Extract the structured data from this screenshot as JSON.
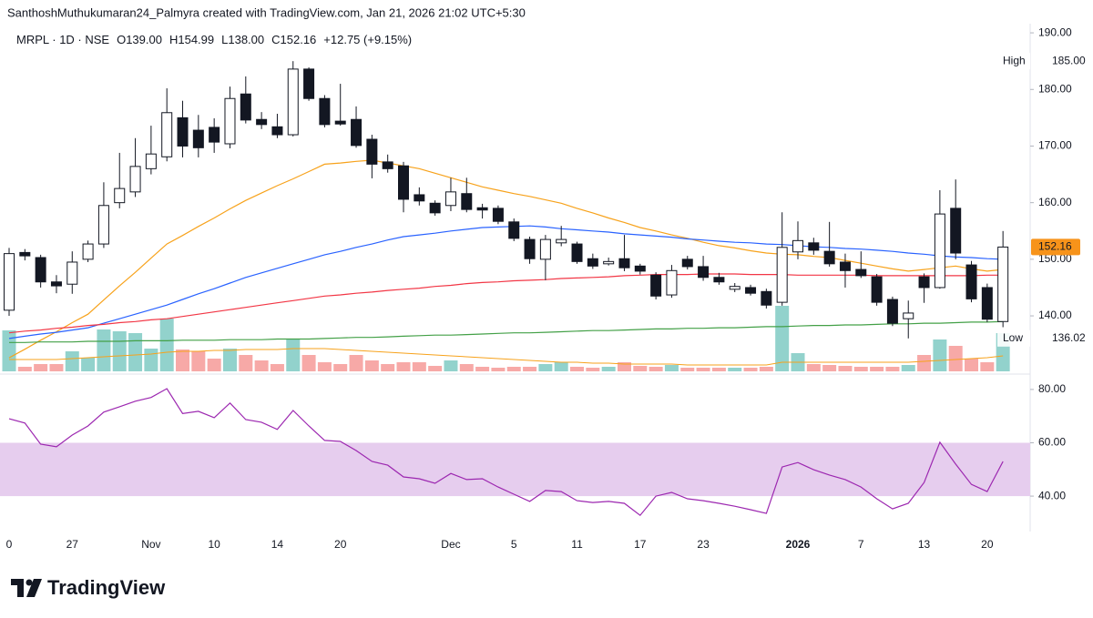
{
  "header": {
    "attribution": "SanthoshMuthukumaran24_Palmyra created with TradingView.com, Jan 21, 2026 21:02 UTC+5:30"
  },
  "chart_data": {
    "type": "candlestick",
    "symbol": "MRPL · 1D · NSE",
    "ohlc_labels": [
      "O139.00",
      "H154.99",
      "L138.00",
      "C152.16"
    ],
    "change": "+12.75 (+9.15%)",
    "categories": [
      "0",
      null,
      null,
      null,
      "27",
      null,
      null,
      null,
      null,
      "Nov",
      null,
      null,
      null,
      "10",
      null,
      null,
      null,
      "14",
      null,
      null,
      null,
      "20",
      null,
      null,
      null,
      null,
      null,
      null,
      "Dec",
      null,
      null,
      null,
      "5",
      null,
      null,
      null,
      "11",
      null,
      null,
      null,
      "17",
      null,
      null,
      null,
      "23",
      null,
      null,
      null,
      null,
      null,
      "2026",
      null,
      null,
      null,
      "7",
      null,
      null,
      null,
      "13",
      null,
      null,
      null,
      "20",
      null
    ],
    "open": [
      141,
      151.2,
      150.3,
      146,
      145.6,
      150,
      152.7,
      160,
      161.9,
      166,
      168.1,
      175,
      172.8,
      173.3,
      170.4,
      179.2,
      174.7,
      173.4,
      172,
      183.6,
      178.4,
      174.4,
      174.7,
      171.2,
      167.2,
      166.5,
      161.4,
      159.9,
      159.5,
      161.6,
      159.1,
      159,
      156.6,
      153.5,
      150,
      152.9,
      152.7,
      150.1,
      149.2,
      150.1,
      148.8,
      147.2,
      143.7,
      150,
      148.7,
      146.8,
      144.7,
      145,
      144.3,
      142.4,
      151.3,
      152.9,
      151.4,
      149.5,
      148.2,
      146.9,
      142.9,
      139.5,
      146.9,
      145,
      159,
      149,
      145,
      139
    ],
    "high": [
      152,
      151.8,
      150.8,
      147.2,
      151.4,
      153.3,
      163.6,
      168.8,
      171.4,
      173.6,
      180.2,
      178,
      175.5,
      174.9,
      180.5,
      182.3,
      176,
      175.7,
      185,
      183.9,
      179,
      181,
      177,
      172,
      168.5,
      167.2,
      162.7,
      160.4,
      164.4,
      164.4,
      159.8,
      159.5,
      157.2,
      154,
      154.3,
      155.9,
      153.1,
      151,
      150.3,
      154.3,
      149.2,
      147.7,
      149,
      150.6,
      150.6,
      147.6,
      145.8,
      145.5,
      144.8,
      158.3,
      156.7,
      153.8,
      156.6,
      151,
      151.4,
      147.4,
      143.4,
      142.7,
      147.5,
      162.2,
      164.1,
      149.7,
      145.7,
      154.99
    ],
    "low": [
      140,
      149.8,
      145,
      144,
      143.9,
      149.5,
      152,
      159,
      161,
      165,
      167.3,
      168,
      168,
      168.8,
      169.6,
      174,
      173,
      171.4,
      171.7,
      178,
      173.3,
      173.6,
      169.7,
      164.3,
      165.3,
      158.3,
      159.5,
      157.7,
      158.5,
      158.3,
      157.2,
      156.2,
      153.2,
      149.2,
      146.3,
      152.3,
      149.2,
      148.3,
      148.9,
      147.9,
      147.3,
      142.9,
      143.2,
      148.2,
      146.2,
      145.5,
      144.2,
      143.6,
      141.3,
      141.8,
      150,
      150.8,
      148.7,
      145,
      146.7,
      141.8,
      138.2,
      136.02,
      142.3,
      144.8,
      150,
      142.4,
      138.9,
      138
    ],
    "close": [
      151,
      150.6,
      146,
      145.3,
      149.5,
      152.7,
      159.5,
      162.5,
      166.4,
      168.6,
      175.9,
      170,
      169.7,
      170.7,
      178.4,
      174.6,
      173.8,
      172,
      183.6,
      178.4,
      173.8,
      173.9,
      170.1,
      166.8,
      166,
      160.6,
      160.3,
      158.2,
      161.9,
      158.8,
      158.7,
      156.7,
      153.7,
      150.1,
      153.5,
      153.5,
      149.6,
      148.8,
      149.6,
      148.5,
      147.9,
      143.5,
      148,
      148.7,
      146.8,
      146,
      145.2,
      144,
      141.9,
      152.1,
      153.3,
      151.6,
      149.2,
      148,
      147.1,
      142.4,
      138.7,
      140.5,
      145,
      158,
      151.1,
      143,
      139.41,
      152.16
    ],
    "up_color": "#ffffff",
    "down_color": "#131722",
    "up_volume_color": "#92d2cc",
    "down_volume_color": "#f7a9a7",
    "volume": [
      45,
      5,
      8,
      8,
      22,
      15,
      46,
      44,
      42,
      25,
      58,
      24,
      22,
      14,
      25,
      18,
      12,
      8,
      36,
      18,
      10,
      8,
      18,
      12,
      8,
      10,
      10,
      6,
      12,
      8,
      5,
      4,
      5,
      5,
      8,
      10,
      5,
      4,
      5,
      10,
      6,
      5,
      7,
      4,
      4,
      4,
      4,
      4,
      5,
      72,
      20,
      8,
      7,
      6,
      5,
      5,
      5,
      7,
      18,
      35,
      28,
      14,
      10,
      42
    ],
    "volume_ma": {
      "color": "#f7a21b",
      "values": [
        13,
        13,
        13,
        13,
        14,
        15,
        16,
        17,
        18,
        19,
        21,
        22,
        22,
        23,
        23,
        24,
        24,
        24,
        25,
        25,
        25,
        24,
        23,
        22,
        21,
        20,
        19,
        18,
        17,
        16,
        15,
        14,
        13,
        12,
        11,
        10,
        10,
        9,
        9,
        8,
        8,
        8,
        8,
        7,
        7,
        7,
        7,
        7,
        7,
        10,
        10,
        10,
        10,
        10,
        10,
        10,
        10,
        10,
        11,
        12,
        13,
        14,
        15,
        17
      ]
    },
    "vlim": [
      0,
      90
    ],
    "overlays": [
      {
        "color": "#f7a21b",
        "values": [
          132.6,
          134.1,
          135.7,
          137.2,
          138.8,
          140.3,
          142.8,
          145.3,
          147.7,
          150.2,
          152.7,
          154.2,
          155.8,
          157.3,
          158.9,
          160.4,
          161.7,
          163,
          164.2,
          165.5,
          166.8,
          167,
          167.3,
          167.5,
          167,
          166.5,
          166,
          165.2,
          164.4,
          163.6,
          162.8,
          162.2,
          161.6,
          161.1,
          160.5,
          159.9,
          159,
          158.2,
          157.3,
          156.5,
          155.6,
          155,
          154.3,
          153.7,
          153,
          152.4,
          152,
          151.5,
          151.1,
          150.9,
          150.8,
          150.5,
          150.3,
          149.8,
          149.3,
          148.8,
          148.3,
          147.9,
          148.2,
          148.5,
          148.8,
          148.3,
          147.9,
          148.2
        ]
      },
      {
        "color": "#2962ff",
        "values": [
          136,
          136.4,
          136.8,
          137.1,
          137.5,
          137.9,
          138.7,
          139.5,
          140.3,
          141.1,
          141.9,
          142.9,
          143.9,
          144.8,
          145.8,
          146.8,
          147.6,
          148.4,
          149.2,
          150,
          150.8,
          151.4,
          152.1,
          152.7,
          153.4,
          154,
          154.3,
          154.6,
          155,
          155.3,
          155.6,
          155.7,
          155.8,
          155.9,
          155.7,
          155.4,
          155.2,
          155,
          154.8,
          154.5,
          154.3,
          154.1,
          153.9,
          153.6,
          153.4,
          153.2,
          153,
          152.9,
          152.7,
          152.6,
          152.4,
          152.2,
          152.1,
          151.9,
          151.8,
          151.6,
          151.4,
          151.1,
          150.9,
          150.6,
          150.4,
          150.3,
          150.1,
          150
        ]
      },
      {
        "color": "#f23645",
        "values": [
          137,
          137.3,
          137.5,
          137.8,
          138,
          138.3,
          138.5,
          138.8,
          139,
          139.3,
          139.5,
          139.9,
          140.3,
          140.7,
          141.1,
          141.5,
          141.9,
          142.3,
          142.7,
          143.1,
          143.5,
          143.7,
          144,
          144.2,
          144.5,
          144.7,
          144.9,
          145.2,
          145.4,
          145.7,
          145.9,
          146,
          146.2,
          146.3,
          146.4,
          146.6,
          146.7,
          146.8,
          146.9,
          147.1,
          147.2,
          147.3,
          147.3,
          147.3,
          147.4,
          147.4,
          147.4,
          147.3,
          147.3,
          147.3,
          147.2,
          147.2,
          147.2,
          147.2,
          147.2,
          147.1,
          147.1,
          147.1,
          147.1,
          147.1,
          147.1,
          147.1,
          147.2,
          147.2
        ]
      },
      {
        "color": "#43a047",
        "values": [
          135.3,
          135.3,
          135.4,
          135.4,
          135.4,
          135.5,
          135.5,
          135.5,
          135.6,
          135.6,
          135.6,
          135.7,
          135.7,
          135.7,
          135.8,
          135.8,
          135.8,
          135.9,
          135.9,
          135.9,
          136,
          136.1,
          136.2,
          136.2,
          136.3,
          136.4,
          136.5,
          136.6,
          136.6,
          136.7,
          136.8,
          136.9,
          137,
          137,
          137.1,
          137.2,
          137.3,
          137.4,
          137.4,
          137.5,
          137.6,
          137.7,
          137.7,
          137.8,
          137.8,
          137.9,
          137.9,
          138,
          138.1,
          138.1,
          138.2,
          138.3,
          138.3,
          138.4,
          138.4,
          138.5,
          138.6,
          138.6,
          138.7,
          138.7,
          138.8,
          138.9,
          138.9,
          139
        ]
      }
    ],
    "ylim": [
      130.2,
      191.3
    ],
    "yticks": [
      {
        "value": 190,
        "label": "190.00"
      },
      {
        "value": 180,
        "label": "180.00"
      },
      {
        "value": 170,
        "label": "170.00"
      },
      {
        "value": 160,
        "label": "160.00"
      },
      {
        "value": 150,
        "label": "150.00"
      },
      {
        "value": 140,
        "label": "140.00"
      }
    ],
    "price_markers": [
      {
        "label": "High",
        "value": 185,
        "value_label": "185.00"
      },
      {
        "label": "Low",
        "value": 136.02,
        "value_label": "136.02"
      }
    ],
    "last_price": 152.16,
    "last_color": "#f7931a",
    "rsi": {
      "color": "#9c27b0",
      "band": [
        40,
        60
      ],
      "band_color": "#e6cdee",
      "ylim": [
        27.4,
        84.4
      ],
      "yticks": [
        {
          "value": 80,
          "label": "80.00"
        },
        {
          "value": 60,
          "label": "60.00"
        },
        {
          "value": 40,
          "label": "40.00"
        }
      ],
      "values": [
        69,
        67.4,
        59.5,
        58.5,
        62.9,
        66.3,
        71.5,
        73.5,
        75.6,
        77,
        80.3,
        71,
        71.8,
        69.4,
        74.9,
        68.7,
        67.7,
        65,
        72.1,
        66.3,
        60.9,
        60.5,
        57.1,
        53,
        51.6,
        47.2,
        46.5,
        44.8,
        48.5,
        46.2,
        46.5,
        43.4,
        40.7,
        38,
        42.1,
        41.7,
        38.3,
        37.6,
        38,
        37.3,
        32.8,
        40,
        41.4,
        39,
        38.3,
        37.3,
        36.2,
        34.9,
        33.5,
        50.9,
        52.6,
        49.9,
        47.9,
        46.2,
        43.4,
        39,
        35.2,
        37.3,
        45.1,
        60.2,
        52,
        44.4,
        41.7,
        53
      ]
    }
  },
  "footer": {
    "brand": "TradingView"
  }
}
